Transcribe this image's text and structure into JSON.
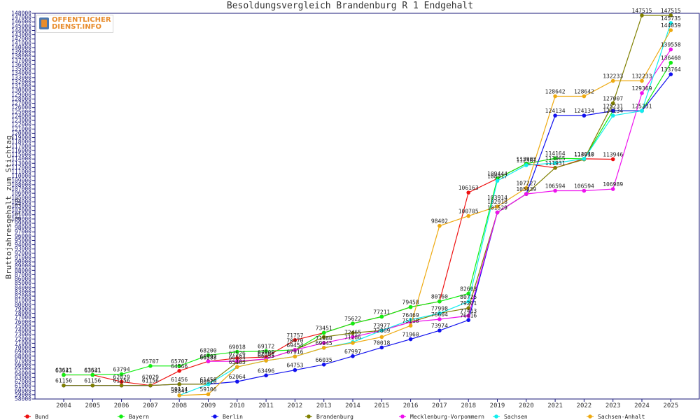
{
  "chart_data": {
    "type": "line",
    "title": "Besoldungsvergleich Brandenburg R 1 Endgehalt",
    "ylabel": "Bruttojahresgehalt zum Stichtag 31.10.",
    "xlabel": "",
    "x": [
      2004,
      2005,
      2006,
      2007,
      2008,
      2009,
      2010,
      2011,
      2012,
      2013,
      2014,
      2015,
      2016,
      2017,
      2018,
      2019,
      2020,
      2021,
      2022,
      2023,
      2024,
      2025
    ],
    "ylim": [
      58000,
      148000
    ],
    "ytick_step": 1000,
    "grid": false,
    "legend_position": "bottom",
    "series": [
      {
        "name": "Bund",
        "color": "#ee1111",
        "values": [
          63621,
          63621,
          62029,
          61156,
          64566,
          66792,
          67526,
          67800,
          71757,
          73451,
          75622,
          77211,
          79458,
          80760,
          106163,
          109444,
          112902,
          111931,
          114040,
          113946,
          null,
          null
        ]
      },
      {
        "name": "Bayern",
        "color": "#11ee11",
        "values": [
          63621,
          63621,
          63794,
          65707,
          65707,
          68200,
          69018,
          69172,
          69454,
          73451,
          75622,
          77211,
          79458,
          80760,
          82603,
          109444,
          112902,
          114164,
          114040,
          125231,
          125231,
          136460
        ]
      },
      {
        "name": "Berlin",
        "color": "#1111ee",
        "values": [
          61156,
          61156,
          61156,
          61156,
          61456,
          61456,
          62064,
          63496,
          64753,
          66035,
          67997,
          70018,
          71960,
          73974,
          76416,
          101527,
          105839,
          124134,
          124134,
          125231,
          125231,
          133764
        ]
      },
      {
        "name": "Brandenburg",
        "color": "#808000",
        "values": [
          61156,
          61156,
          61156,
          61156,
          61456,
          61456,
          66584,
          67351,
          69465,
          72465,
          73416,
          73977,
          75968,
          77998,
          79201,
          101529,
          105839,
          111931,
          113910,
          127007,
          147515,
          147515
        ]
      },
      {
        "name": "Mecklenburg-Vorpommern",
        "color": "#ee11ee",
        "values": [
          null,
          null,
          null,
          null,
          null,
          66792,
          66792,
          67351,
          69454,
          71080,
          72465,
          73977,
          75968,
          76604,
          77413,
          101529,
          105839,
          106594,
          106594,
          106989,
          129369,
          139558
        ]
      },
      {
        "name": "Sachsen",
        "color": "#11eeee",
        "values": [
          null,
          null,
          null,
          null,
          58841,
          61456,
          65483,
          66955,
          67916,
          69945,
          71286,
          73977,
          76469,
          77998,
          80725,
          108917,
          112561,
          113065,
          114040,
          124134,
          125231,
          145735
        ]
      },
      {
        "name": "Sachsen-Anhalt",
        "color": "#eeaa11",
        "values": [
          null,
          null,
          null,
          null,
          58841,
          59106,
          65483,
          66955,
          67916,
          69945,
          71080,
          72465,
          75118,
          98402,
          100705,
          102918,
          107227,
          128642,
          128642,
          132233,
          132233,
          144059
        ]
      }
    ],
    "data_labels": [
      {
        "x": 2004,
        "y": 63621,
        "text": "63621"
      },
      {
        "x": 2004,
        "y": 63541,
        "text": "63541"
      },
      {
        "x": 2004,
        "y": 61156,
        "text": "61156"
      },
      {
        "x": 2005,
        "y": 63621,
        "text": "63621"
      },
      {
        "x": 2005,
        "y": 63541,
        "text": "63541"
      },
      {
        "x": 2005,
        "y": 61156,
        "text": "61156"
      },
      {
        "x": 2006,
        "y": 63794,
        "text": "63794"
      },
      {
        "x": 2006,
        "y": 62029,
        "text": "62029"
      },
      {
        "x": 2006,
        "y": 61156,
        "text": "61156"
      },
      {
        "x": 2007,
        "y": 65707,
        "text": "65707"
      },
      {
        "x": 2007,
        "y": 62029,
        "text": "62029"
      },
      {
        "x": 2007,
        "y": 61156,
        "text": "61156"
      },
      {
        "x": 2008,
        "y": 65707,
        "text": "65707"
      },
      {
        "x": 2008,
        "y": 64566,
        "text": "64566"
      },
      {
        "x": 2008,
        "y": 61456,
        "text": "61456"
      },
      {
        "x": 2008,
        "y": 59114,
        "text": "59114"
      },
      {
        "x": 2008,
        "y": 58841,
        "text": "58841"
      },
      {
        "x": 2009,
        "y": 68200,
        "text": "68200"
      },
      {
        "x": 2009,
        "y": 66792,
        "text": "66792"
      },
      {
        "x": 2009,
        "y": 66588,
        "text": "66588"
      },
      {
        "x": 2009,
        "y": 61456,
        "text": "61456"
      },
      {
        "x": 2009,
        "y": 60910,
        "text": "60910"
      },
      {
        "x": 2009,
        "y": 59106,
        "text": "59106"
      },
      {
        "x": 2010,
        "y": 69018,
        "text": "69018"
      },
      {
        "x": 2010,
        "y": 67526,
        "text": "67526"
      },
      {
        "x": 2010,
        "y": 66584,
        "text": "66584"
      },
      {
        "x": 2010,
        "y": 65483,
        "text": "65483"
      },
      {
        "x": 2010,
        "y": 62064,
        "text": "62064"
      },
      {
        "x": 2011,
        "y": 69172,
        "text": "69172"
      },
      {
        "x": 2011,
        "y": 67800,
        "text": "67800"
      },
      {
        "x": 2011,
        "y": 67351,
        "text": "67351"
      },
      {
        "x": 2011,
        "y": 66955,
        "text": "66955"
      },
      {
        "x": 2011,
        "y": 63496,
        "text": "63496"
      },
      {
        "x": 2012,
        "y": 71757,
        "text": "71757"
      },
      {
        "x": 2012,
        "y": 70470,
        "text": "70470"
      },
      {
        "x": 2012,
        "y": 69454,
        "text": "69454"
      },
      {
        "x": 2012,
        "y": 67916,
        "text": "67916"
      },
      {
        "x": 2012,
        "y": 64753,
        "text": "64753"
      },
      {
        "x": 2013,
        "y": 73451,
        "text": "73451"
      },
      {
        "x": 2013,
        "y": 71080,
        "text": "71080"
      },
      {
        "x": 2013,
        "y": 69945,
        "text": "69945"
      },
      {
        "x": 2013,
        "y": 66035,
        "text": "66035"
      },
      {
        "x": 2014,
        "y": 75622,
        "text": "75622"
      },
      {
        "x": 2014,
        "y": 72465,
        "text": "72465"
      },
      {
        "x": 2014,
        "y": 71286,
        "text": "71286"
      },
      {
        "x": 2014,
        "y": 67997,
        "text": "67997"
      },
      {
        "x": 2015,
        "y": 77211,
        "text": "77211"
      },
      {
        "x": 2015,
        "y": 73977,
        "text": "73977"
      },
      {
        "x": 2015,
        "y": 72869,
        "text": "72869"
      },
      {
        "x": 2015,
        "y": 70018,
        "text": "70018"
      },
      {
        "x": 2016,
        "y": 79458,
        "text": "79458"
      },
      {
        "x": 2016,
        "y": 76469,
        "text": "76469"
      },
      {
        "x": 2016,
        "y": 75118,
        "text": "75118"
      },
      {
        "x": 2016,
        "y": 71960,
        "text": "71960"
      },
      {
        "x": 2017,
        "y": 98402,
        "text": "98402"
      },
      {
        "x": 2017,
        "y": 80760,
        "text": "80760"
      },
      {
        "x": 2017,
        "y": 77998,
        "text": "77998"
      },
      {
        "x": 2017,
        "y": 76604,
        "text": "76604"
      },
      {
        "x": 2017,
        "y": 73974,
        "text": "73974"
      },
      {
        "x": 2018,
        "y": 106163,
        "text": "106163"
      },
      {
        "x": 2018,
        "y": 100705,
        "text": "100705"
      },
      {
        "x": 2018,
        "y": 82603,
        "text": "82603"
      },
      {
        "x": 2018,
        "y": 80725,
        "text": "80725"
      },
      {
        "x": 2018,
        "y": 79201,
        "text": "79201"
      },
      {
        "x": 2018,
        "y": 77413,
        "text": "77413"
      },
      {
        "x": 2018,
        "y": 76416,
        "text": "76416"
      },
      {
        "x": 2019,
        "y": 109444,
        "text": "109444"
      },
      {
        "x": 2019,
        "y": 108917,
        "text": "108917"
      },
      {
        "x": 2019,
        "y": 103914,
        "text": "103914"
      },
      {
        "x": 2019,
        "y": 102918,
        "text": "102918"
      },
      {
        "x": 2019,
        "y": 101529,
        "text": "101529"
      },
      {
        "x": 2020,
        "y": 112902,
        "text": "112902"
      },
      {
        "x": 2020,
        "y": 112561,
        "text": "112561"
      },
      {
        "x": 2020,
        "y": 107227,
        "text": "107227"
      },
      {
        "x": 2020,
        "y": 105839,
        "text": "105839"
      },
      {
        "x": 2021,
        "y": 128642,
        "text": "128642"
      },
      {
        "x": 2021,
        "y": 124134,
        "text": "124134"
      },
      {
        "x": 2021,
        "y": 114164,
        "text": "114164"
      },
      {
        "x": 2021,
        "y": 113065,
        "text": "113065"
      },
      {
        "x": 2021,
        "y": 111931,
        "text": "111931"
      },
      {
        "x": 2021,
        "y": 106594,
        "text": "106594"
      },
      {
        "x": 2022,
        "y": 128642,
        "text": "128642"
      },
      {
        "x": 2022,
        "y": 124134,
        "text": "124134"
      },
      {
        "x": 2022,
        "y": 114040,
        "text": "114040"
      },
      {
        "x": 2022,
        "y": 113910,
        "text": "113910"
      },
      {
        "x": 2022,
        "y": 106594,
        "text": "106594"
      },
      {
        "x": 2023,
        "y": 132233,
        "text": "132233"
      },
      {
        "x": 2023,
        "y": 127007,
        "text": "127007"
      },
      {
        "x": 2023,
        "y": 125231,
        "text": "125231"
      },
      {
        "x": 2023,
        "y": 124134,
        "text": "124134"
      },
      {
        "x": 2023,
        "y": 113946,
        "text": "113946"
      },
      {
        "x": 2023,
        "y": 106989,
        "text": "106989"
      },
      {
        "x": 2024,
        "y": 147515,
        "text": "147515"
      },
      {
        "x": 2024,
        "y": 132233,
        "text": "132233"
      },
      {
        "x": 2024,
        "y": 129369,
        "text": "129369"
      },
      {
        "x": 2024,
        "y": 125231,
        "text": "125231"
      },
      {
        "x": 2025,
        "y": 147515,
        "text": "147515"
      },
      {
        "x": 2025,
        "y": 145735,
        "text": "145735"
      },
      {
        "x": 2025,
        "y": 144059,
        "text": "144059"
      },
      {
        "x": 2025,
        "y": 139558,
        "text": "139558"
      },
      {
        "x": 2025,
        "y": 136460,
        "text": "136460"
      },
      {
        "x": 2025,
        "y": 133764,
        "text": "133764"
      }
    ]
  },
  "logo": {
    "line1": "OFFENTLICHER",
    "line2": "DIENST.INFO"
  }
}
